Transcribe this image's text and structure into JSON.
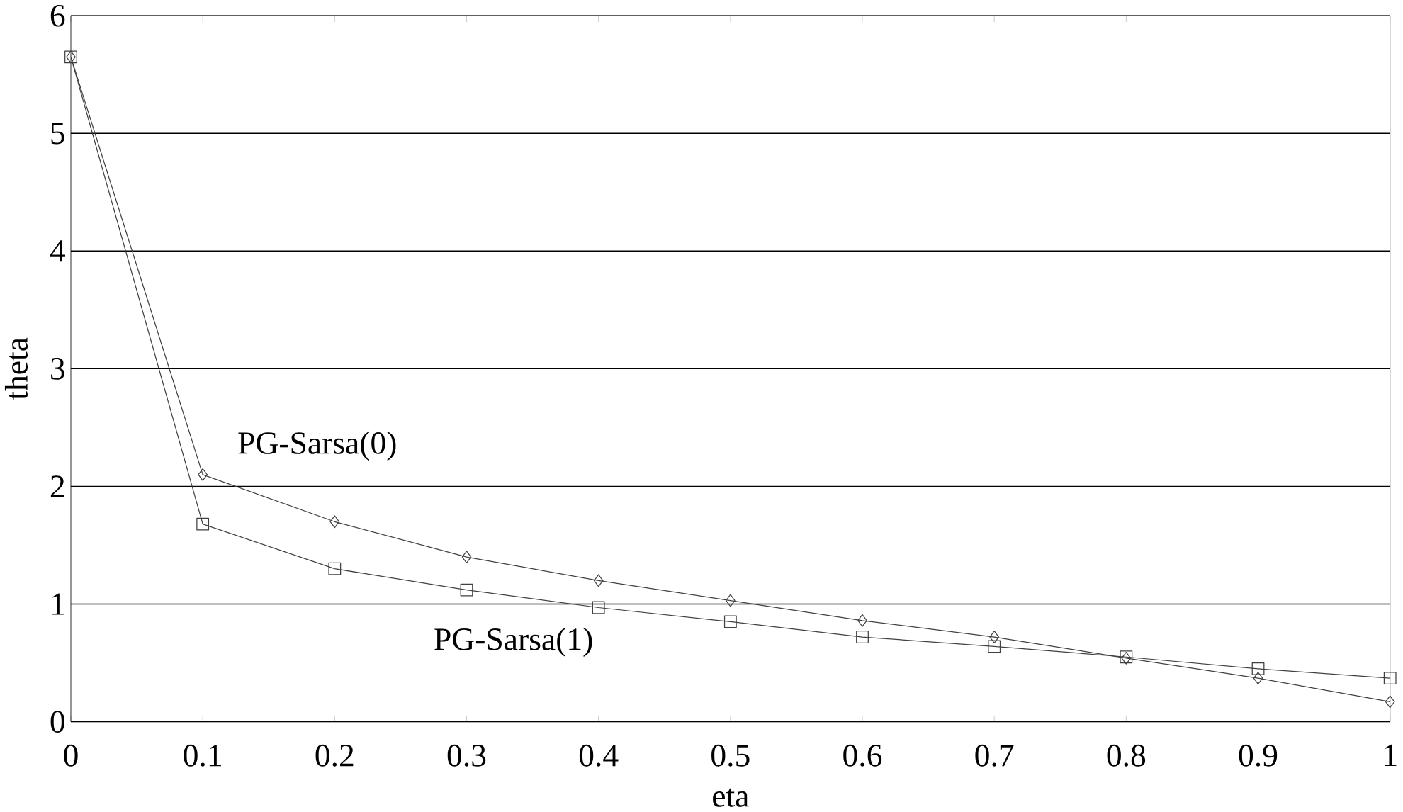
{
  "chart_data": {
    "type": "line",
    "xlabel": "eta",
    "ylabel": "theta",
    "x": [
      0,
      0.1,
      0.2,
      0.3,
      0.4,
      0.5,
      0.6,
      0.7,
      0.8,
      0.9,
      1
    ],
    "series": [
      {
        "name": "PG-Sarsa(0)",
        "color": "#404040",
        "marker": "diamond",
        "values": [
          5.65,
          2.1,
          1.7,
          1.4,
          1.2,
          1.03,
          0.86,
          0.72,
          0.54,
          0.37,
          0.17
        ]
      },
      {
        "name": "PG-Sarsa(1)",
        "color": "#404040",
        "marker": "square",
        "values": [
          5.65,
          1.68,
          1.3,
          1.12,
          0.97,
          0.85,
          0.72,
          0.64,
          0.55,
          0.45,
          0.37
        ]
      }
    ],
    "xlim": [
      0,
      1
    ],
    "xticks": [
      0,
      0.1,
      0.2,
      0.3,
      0.4,
      0.5,
      0.6,
      0.7,
      0.8,
      0.9,
      1
    ],
    "ylim": [
      0,
      6
    ],
    "yticks": [
      0,
      1,
      2,
      3,
      4,
      5,
      6
    ],
    "grid": "y",
    "legend": false,
    "line_style": "solid"
  }
}
